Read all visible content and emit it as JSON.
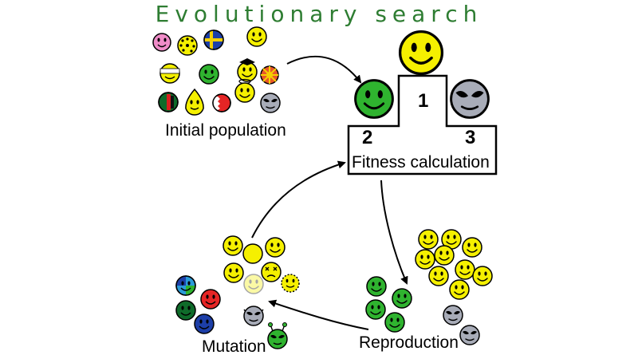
{
  "title": "Evolutionary search",
  "labels": {
    "initial_population": "Initial population",
    "fitness_calculation": "Fitness calculation",
    "reproduction": "Reproduction",
    "mutation": "Mutation"
  },
  "podium": {
    "first": "1",
    "second": "2",
    "third": "3"
  },
  "colors": {
    "title": "#2e7d32",
    "yellow": "#f5f000",
    "green": "#2fb32f",
    "alien_gray": "#a8acb8",
    "pink": "#f08cc8",
    "red": "#e52525",
    "blue": "#1d3fa8",
    "dark_green": "#0f6b2a"
  }
}
